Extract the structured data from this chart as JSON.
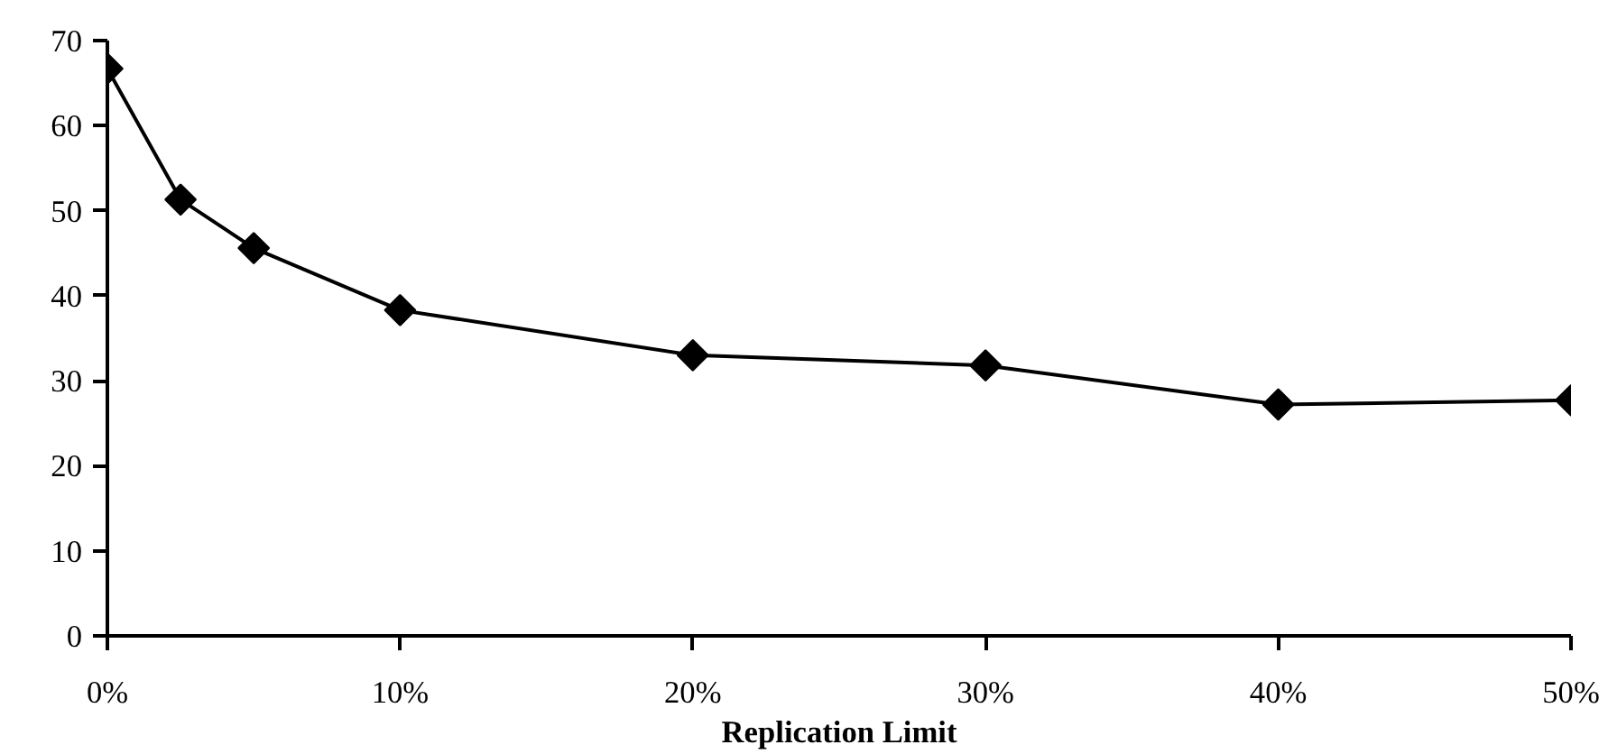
{
  "chart_data": {
    "type": "line",
    "xlabel": "Replication Limit",
    "x": [
      0,
      2.5,
      5,
      10,
      20,
      30,
      40,
      50
    ],
    "series": [
      {
        "color": "#000000",
        "values": [
          66.7,
          51.3,
          45.6,
          38.3,
          33.0,
          31.8,
          27.2,
          27.7
        ]
      }
    ],
    "xlim": [
      0,
      50
    ],
    "xticks": [
      {
        "value": 0,
        "label": "0%"
      },
      {
        "value": 10,
        "label": "10%"
      },
      {
        "value": 20,
        "label": "20%"
      },
      {
        "value": 30,
        "label": "30%"
      },
      {
        "value": 40,
        "label": "40%"
      },
      {
        "value": 50,
        "label": "50%"
      }
    ],
    "ylim": [
      0,
      70
    ],
    "yticks": [
      0,
      10,
      20,
      30,
      40,
      50,
      60,
      70
    ],
    "grid": false,
    "marker": "diamond",
    "line_style": "solid"
  }
}
